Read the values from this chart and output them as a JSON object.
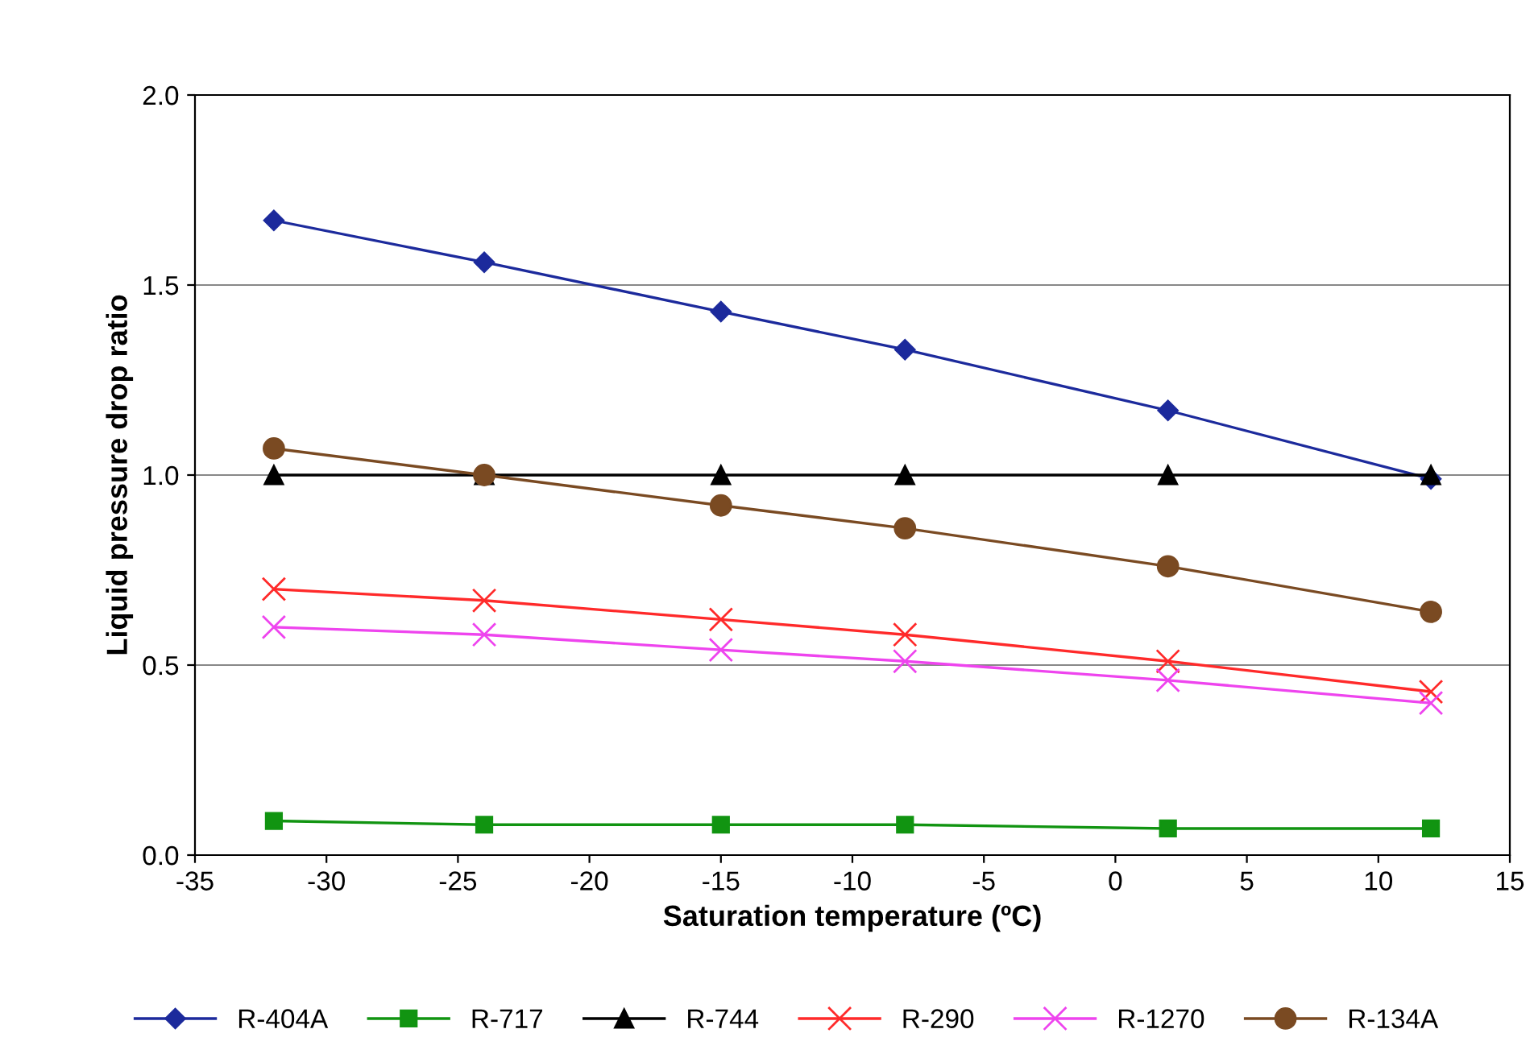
{
  "chart_data": {
    "type": "line",
    "xlabel": "Saturation temperature (ºC)",
    "ylabel": "Liquid pressure drop ratio",
    "x": [
      -32,
      -24,
      -15,
      -8,
      2,
      12
    ],
    "xlim": [
      -35,
      15
    ],
    "xticks": [
      -35,
      -30,
      -25,
      -20,
      -15,
      -10,
      -5,
      0,
      5,
      10,
      15
    ],
    "ylim": [
      0,
      2
    ],
    "yticks": [
      {
        "value": 0,
        "label": "0.0"
      },
      {
        "value": 0.5,
        "label": "0.5"
      },
      {
        "value": 1,
        "label": "1.0"
      },
      {
        "value": 1.5,
        "label": "1.5"
      },
      {
        "value": 2,
        "label": "2.0"
      }
    ],
    "grid": "y",
    "legend": "bottom",
    "series": [
      {
        "name": "R-404A",
        "color": "#1c2a9c",
        "marker": "diamond",
        "values": [
          1.67,
          1.56,
          1.43,
          1.33,
          1.17,
          0.99
        ]
      },
      {
        "name": "R-717",
        "color": "#119411",
        "marker": "square",
        "values": [
          0.09,
          0.08,
          0.08,
          0.08,
          0.07,
          0.07
        ]
      },
      {
        "name": "R-744",
        "color": "#000000",
        "marker": "triangle",
        "values": [
          1.0,
          1.0,
          1.0,
          1.0,
          1.0,
          1.0
        ]
      },
      {
        "name": "R-290",
        "color": "#ff2a2a",
        "marker": "cross",
        "values": [
          0.7,
          0.67,
          0.62,
          0.58,
          0.51,
          0.43
        ]
      },
      {
        "name": "R-1270",
        "color": "#ee44ee",
        "marker": "cross",
        "values": [
          0.6,
          0.58,
          0.54,
          0.51,
          0.46,
          0.4
        ]
      },
      {
        "name": "R-134A",
        "color": "#7a4a22",
        "marker": "circle",
        "values": [
          1.07,
          1.0,
          0.92,
          0.86,
          0.76,
          0.64
        ]
      }
    ]
  }
}
